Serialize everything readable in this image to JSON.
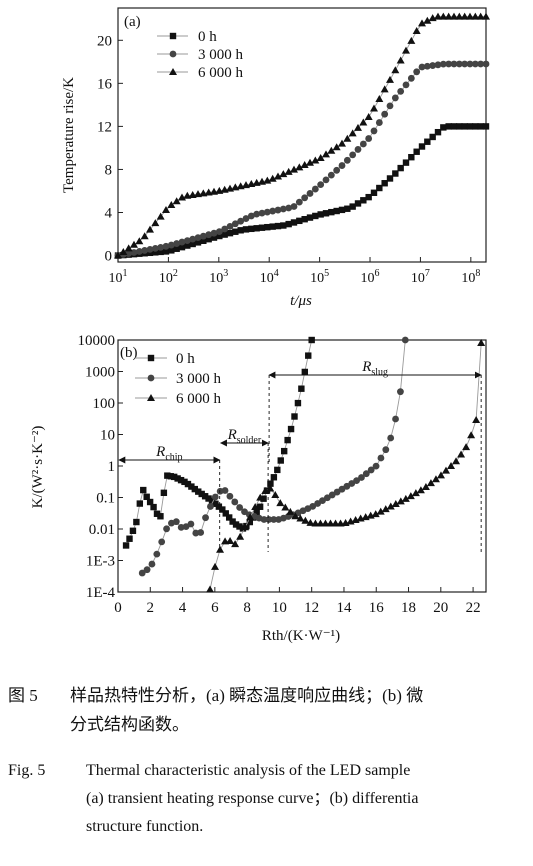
{
  "chart_data": [
    {
      "type": "line",
      "panel_label": "(a)",
      "xlabel": "t/μs",
      "ylabel": "Temperature rise/K",
      "x_scale": "log",
      "xlim": [
        10,
        200000000
      ],
      "ylim": [
        -0.6,
        23.0
      ],
      "x_ticks": [
        "10^1",
        "10^2",
        "10^3",
        "10^4",
        "10^5",
        "10^6",
        "10^7",
        "10^8"
      ],
      "y_ticks": [
        "0",
        "4",
        "8",
        "12",
        "16",
        "20"
      ],
      "legend": [
        "0 h",
        "3 000 h",
        "6 000 h"
      ],
      "legend_position": "top-left",
      "grid": false,
      "series": [
        {
          "name": "0 h",
          "marker": "square",
          "x": [
            10,
            100,
            1000,
            3000,
            20000,
            100000,
            400000,
            1000000,
            3000000,
            10000000,
            30000000,
            200000000
          ],
          "y": [
            0,
            0.4,
            1.8,
            2.4,
            2.8,
            3.8,
            4.4,
            5.5,
            7.5,
            10.0,
            12.0,
            12.0
          ]
        },
        {
          "name": "3 000 h",
          "marker": "circle",
          "x": [
            10,
            100,
            1000,
            5000,
            30000,
            100000,
            300000,
            1000000,
            3000000,
            10000000,
            30000000,
            200000000
          ],
          "y": [
            0,
            0.9,
            2.2,
            3.8,
            4.5,
            6.5,
            8.5,
            11.0,
            14.5,
            17.5,
            17.8,
            17.8
          ]
        },
        {
          "name": "6 000 h",
          "marker": "triangle",
          "x": [
            10,
            30,
            100,
            200,
            1000,
            10000,
            100000,
            300000,
            1000000,
            3000000,
            10000000,
            20000000,
            200000000
          ],
          "y": [
            0,
            1.5,
            4.5,
            5.5,
            6.0,
            7.0,
            9.0,
            10.5,
            13.0,
            17.0,
            21.5,
            22.2,
            22.2
          ]
        }
      ]
    },
    {
      "type": "line",
      "panel_label": "(b)",
      "xlabel": "Rth/(K·W⁻¹)",
      "ylabel": "K/(W²·s·K⁻²)",
      "y_scale": "log",
      "xlim": [
        0,
        22.8
      ],
      "ylim": [
        0.0001,
        10000
      ],
      "x_ticks": [
        "0",
        "2",
        "4",
        "6",
        "8",
        "10",
        "12",
        "14",
        "16",
        "18",
        "20",
        "22"
      ],
      "y_ticks": [
        "1E-4",
        "1E-3",
        "0.01",
        "0.1",
        "1",
        "10",
        "100",
        "1000",
        "10000"
      ],
      "legend": [
        "0 h",
        "3 000 h",
        "6 000 h"
      ],
      "legend_position": "top-left",
      "grid": false,
      "annotations": [
        "Rchip",
        "Rsolder",
        "Rslug"
      ],
      "annotation_spans": [
        [
          0,
          6.3
        ],
        [
          6.3,
          9.3
        ],
        [
          9.3,
          22.5
        ]
      ],
      "series": [
        {
          "name": "0 h",
          "marker": "square",
          "x": [
            0.5,
            0.8,
            1.2,
            1.5,
            1.8,
            2.2,
            2.6,
            3.0,
            3.5,
            4.2,
            5.0,
            5.8,
            6.5,
            7.2,
            7.8,
            8.3,
            8.8,
            9.3,
            9.8,
            10.3,
            10.8,
            11.3,
            11.7,
            12.0
          ],
          "y": [
            0.003,
            0.006,
            0.02,
            0.2,
            0.1,
            0.05,
            0.02,
            0.5,
            0.45,
            0.3,
            0.15,
            0.08,
            0.04,
            0.015,
            0.01,
            0.02,
            0.05,
            0.2,
            0.6,
            3,
            20,
            200,
            2000,
            10000
          ]
        },
        {
          "name": "3 000 h",
          "marker": "circle",
          "x": [
            1.5,
            2.0,
            2.5,
            3.0,
            3.5,
            4.0,
            4.5,
            5.0,
            5.5,
            6.0,
            6.5,
            7.0,
            7.5,
            8.0,
            9.0,
            10.0,
            11.0,
            12.0,
            13.0,
            14.0,
            15.0,
            16.0,
            16.8,
            17.3,
            17.6,
            17.8
          ],
          "y": [
            0.0004,
            0.0006,
            0.002,
            0.01,
            0.02,
            0.01,
            0.015,
            0.005,
            0.03,
            0.1,
            0.2,
            0.1,
            0.05,
            0.03,
            0.02,
            0.02,
            0.03,
            0.05,
            0.1,
            0.2,
            0.4,
            1,
            5,
            50,
            500,
            10000
          ]
        },
        {
          "name": "6 000 h",
          "marker": "triangle",
          "x": [
            5.7,
            6.0,
            6.4,
            6.8,
            7.2,
            7.6,
            8.0,
            8.5,
            9.0,
            9.5,
            10.0,
            11.0,
            12.0,
            14.0,
            16.0,
            18.0,
            19.0,
            20.0,
            21.0,
            21.7,
            22.2,
            22.4,
            22.5
          ],
          "y": [
            0.00012,
            0.0006,
            0.003,
            0.005,
            0.003,
            0.006,
            0.015,
            0.05,
            0.15,
            0.2,
            0.07,
            0.025,
            0.015,
            0.015,
            0.03,
            0.1,
            0.2,
            0.5,
            1.5,
            5,
            30,
            500,
            8000
          ]
        }
      ]
    }
  ],
  "caption": {
    "cn_label": "图 5",
    "cn_line1": "样品热特性分析，(a) 瞬态温度响应曲线；(b) 微",
    "cn_line2": "分式结构函数。",
    "en_label": "Fig. 5",
    "en_line1": "Thermal characteristic analysis of the LED sample",
    "en_line2": "(a) transient heating response curve；(b) differentia",
    "en_line3": "structure function."
  }
}
